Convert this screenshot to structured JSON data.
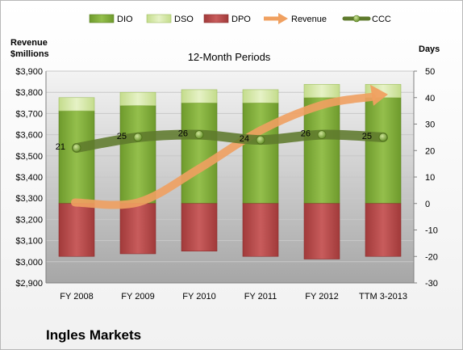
{
  "chart_data": {
    "type": "bar",
    "subtitle": "12-Month Periods",
    "company": "Ingles Markets",
    "left_axis_title": [
      "Revenue",
      "$millions"
    ],
    "right_axis_title": "Days",
    "categories": [
      "FY 2008",
      "FY 2009",
      "FY 2010",
      "FY 2011",
      "FY 2012",
      "TTM 3-2013"
    ],
    "left_ylim": [
      2900,
      3900
    ],
    "left_ticks": [
      2900,
      3000,
      3100,
      3200,
      3300,
      3400,
      3500,
      3600,
      3700,
      3800,
      3900
    ],
    "right_ylim": [
      -30,
      50
    ],
    "right_ticks": [
      -30,
      -20,
      -10,
      0,
      10,
      20,
      30,
      40,
      50
    ],
    "grid": true,
    "legend_position": "top",
    "series": [
      {
        "name": "DIO",
        "kind": "stacked-bar",
        "axis": "right",
        "color": "#7ea83a",
        "values": [
          35,
          37,
          38,
          38,
          40,
          40
        ]
      },
      {
        "name": "DSO",
        "kind": "stacked-bar",
        "axis": "right",
        "color": "#d6e8a8",
        "values": [
          5,
          5,
          5,
          5,
          5,
          5
        ]
      },
      {
        "name": "DPO",
        "kind": "negative-bar",
        "axis": "right",
        "color": "#b84a4a",
        "values": [
          -20,
          -19,
          -18,
          -20,
          -21,
          -20
        ]
      },
      {
        "name": "Revenue",
        "kind": "arrow-line",
        "axis": "left",
        "color": "#f0a060",
        "values": [
          3280,
          3280,
          3440,
          3620,
          3740,
          3790
        ]
      },
      {
        "name": "CCC",
        "kind": "line",
        "axis": "right",
        "color": "#5e7a2c",
        "values": [
          21,
          25,
          26,
          24,
          26,
          25
        ]
      }
    ]
  }
}
